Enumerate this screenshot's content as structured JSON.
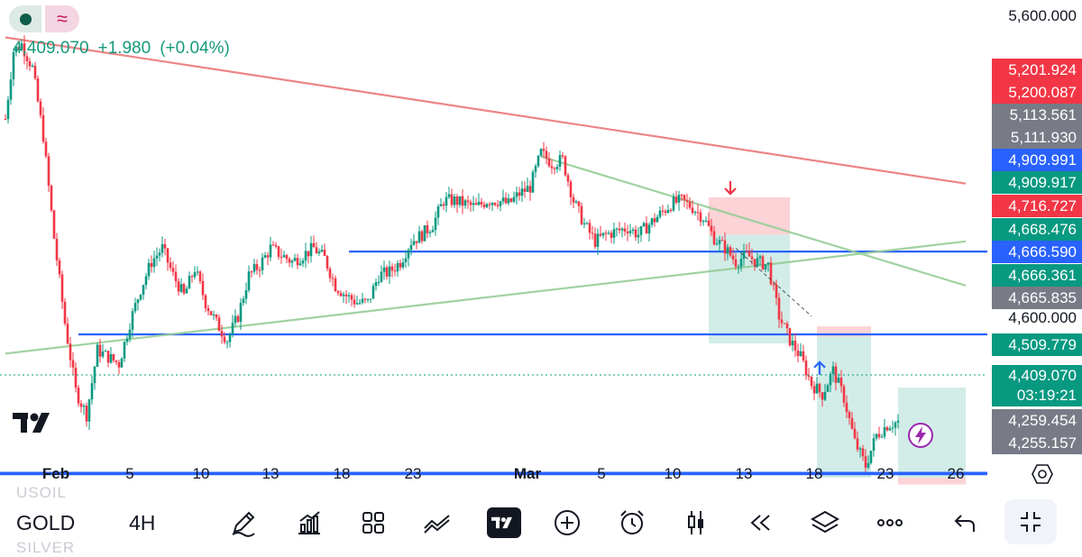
{
  "header": {
    "price": "4,409.070",
    "change": "+1.980",
    "change_pct": "(+0.04%)",
    "colors": {
      "up": "#089981",
      "down": "#f23645",
      "blue_line": "#2962ff"
    }
  },
  "price_axis": {
    "plain_labels": [
      "5,600.000",
      "4,600.000"
    ],
    "tags": [
      {
        "text": "5,201.924",
        "color": "#f23645"
      },
      {
        "text": "5,200.087",
        "color": "#f23645"
      },
      {
        "text": "5,113.561",
        "color": "#787b86"
      },
      {
        "text": "5,111.930",
        "color": "#787b86"
      },
      {
        "text": "4,909.991",
        "color": "#2962ff"
      },
      {
        "text": "4,909.917",
        "color": "#089981"
      },
      {
        "text": "4,716.727",
        "color": "#f23645"
      },
      {
        "text": "4,668.476",
        "color": "#089981"
      },
      {
        "text": "4,666.590",
        "color": "#2962ff"
      },
      {
        "text": "4,666.361",
        "color": "#089981"
      },
      {
        "text": "4,665.835",
        "color": "#787b86"
      },
      {
        "text": "4,509.779",
        "color": "#089981"
      },
      {
        "text": "4,259.454",
        "color": "#787b86"
      },
      {
        "text": "4,255.157",
        "color": "#787b86"
      }
    ],
    "current_tag": {
      "price": "4,409.070",
      "countdown": "03:19:21",
      "color": "#089981"
    }
  },
  "time_axis": {
    "labels": [
      "Feb",
      "5",
      "10",
      "13",
      "18",
      "23",
      "Mar",
      "5",
      "10",
      "13",
      "18",
      "23",
      "26"
    ]
  },
  "toolbar": {
    "symbol": "GOLD",
    "ghost_above": "USOIL",
    "ghost_below": "SILVER",
    "timeframe": "4H"
  },
  "chart_data": {
    "type": "candlestick",
    "symbol": "GOLD",
    "timeframe": "4H",
    "ylim": [
      4200,
      5650
    ],
    "x_ticks": [
      "Feb",
      "5",
      "10",
      "13",
      "18",
      "23",
      "Mar",
      "5",
      "10",
      "13",
      "18",
      "23",
      "26"
    ],
    "close_path": [
      {
        "t": 0.0,
        "p": 5300
      },
      {
        "t": 0.3,
        "p": 5500
      },
      {
        "t": 0.6,
        "p": 5520
      },
      {
        "t": 1.0,
        "p": 5450
      },
      {
        "t": 1.4,
        "p": 5250
      },
      {
        "t": 1.8,
        "p": 4950
      },
      {
        "t": 2.2,
        "p": 4700
      },
      {
        "t": 2.6,
        "p": 4500
      },
      {
        "t": 3.0,
        "p": 4430
      },
      {
        "t": 3.4,
        "p": 4620
      },
      {
        "t": 3.8,
        "p": 4600
      },
      {
        "t": 4.2,
        "p": 4580
      },
      {
        "t": 4.6,
        "p": 4700
      },
      {
        "t": 5.0,
        "p": 4800
      },
      {
        "t": 5.4,
        "p": 4880
      },
      {
        "t": 5.8,
        "p": 4920
      },
      {
        "t": 6.2,
        "p": 4840
      },
      {
        "t": 6.6,
        "p": 4780
      },
      {
        "t": 7.0,
        "p": 4860
      },
      {
        "t": 7.4,
        "p": 4760
      },
      {
        "t": 7.8,
        "p": 4700
      },
      {
        "t": 8.2,
        "p": 4650
      },
      {
        "t": 8.6,
        "p": 4720
      },
      {
        "t": 9.0,
        "p": 4840
      },
      {
        "t": 9.4,
        "p": 4870
      },
      {
        "t": 9.8,
        "p": 4920
      },
      {
        "t": 10.2,
        "p": 4900
      },
      {
        "t": 10.6,
        "p": 4880
      },
      {
        "t": 11.0,
        "p": 4900
      },
      {
        "t": 11.4,
        "p": 4920
      },
      {
        "t": 11.8,
        "p": 4890
      },
      {
        "t": 12.2,
        "p": 4810
      },
      {
        "t": 12.6,
        "p": 4780
      },
      {
        "t": 13.0,
        "p": 4760
      },
      {
        "t": 13.4,
        "p": 4760
      },
      {
        "t": 13.8,
        "p": 4840
      },
      {
        "t": 14.2,
        "p": 4850
      },
      {
        "t": 14.6,
        "p": 4880
      },
      {
        "t": 15.0,
        "p": 4940
      },
      {
        "t": 15.4,
        "p": 4960
      },
      {
        "t": 15.8,
        "p": 4990
      },
      {
        "t": 16.2,
        "p": 5060
      },
      {
        "t": 16.6,
        "p": 5060
      },
      {
        "t": 17.0,
        "p": 5050
      },
      {
        "t": 17.4,
        "p": 5040
      },
      {
        "t": 17.8,
        "p": 5060
      },
      {
        "t": 18.2,
        "p": 5060
      },
      {
        "t": 18.6,
        "p": 5050
      },
      {
        "t": 19.0,
        "p": 5080
      },
      {
        "t": 19.4,
        "p": 5100
      },
      {
        "t": 19.8,
        "p": 5200
      },
      {
        "t": 20.2,
        "p": 5170
      },
      {
        "t": 20.6,
        "p": 5180
      },
      {
        "t": 21.0,
        "p": 5060
      },
      {
        "t": 21.4,
        "p": 4990
      },
      {
        "t": 21.8,
        "p": 4940
      },
      {
        "t": 22.2,
        "p": 4960
      },
      {
        "t": 22.6,
        "p": 4970
      },
      {
        "t": 23.0,
        "p": 4980
      },
      {
        "t": 23.4,
        "p": 4960
      },
      {
        "t": 23.8,
        "p": 4990
      },
      {
        "t": 24.2,
        "p": 5020
      },
      {
        "t": 24.6,
        "p": 5050
      },
      {
        "t": 25.0,
        "p": 5060
      },
      {
        "t": 25.4,
        "p": 5040
      },
      {
        "t": 25.8,
        "p": 5010
      },
      {
        "t": 26.2,
        "p": 4950
      },
      {
        "t": 26.6,
        "p": 4920
      },
      {
        "t": 27.0,
        "p": 4880
      },
      {
        "t": 27.4,
        "p": 4900
      },
      {
        "t": 27.8,
        "p": 4880
      },
      {
        "t": 28.2,
        "p": 4870
      },
      {
        "t": 28.6,
        "p": 4720
      },
      {
        "t": 29.0,
        "p": 4650
      },
      {
        "t": 29.4,
        "p": 4600
      },
      {
        "t": 29.8,
        "p": 4520
      },
      {
        "t": 30.2,
        "p": 4490
      },
      {
        "t": 30.6,
        "p": 4560
      },
      {
        "t": 31.0,
        "p": 4480
      },
      {
        "t": 31.4,
        "p": 4350
      },
      {
        "t": 31.8,
        "p": 4280
      },
      {
        "t": 32.2,
        "p": 4370
      },
      {
        "t": 32.6,
        "p": 4400
      },
      {
        "t": 33.0,
        "p": 4409
      }
    ],
    "horizontal_lines": [
      4909.991,
      4666.59,
      4259.454,
      4255.157
    ],
    "trend_lines": [
      {
        "color": "red",
        "from": {
          "t": 0.0,
          "p": 5540
        },
        "to": {
          "t": 35.5,
          "p": 5110
        }
      },
      {
        "color": "green",
        "from": {
          "t": 0.0,
          "p": 4610
        },
        "to": {
          "t": 35.5,
          "p": 4940
        }
      },
      {
        "color": "green",
        "from": {
          "t": 19.8,
          "p": 5190
        },
        "to": {
          "t": 35.5,
          "p": 4810
        }
      }
    ],
    "positions": [
      {
        "side": "short",
        "start": 26.0,
        "end": 29.0,
        "entry": 4960,
        "stop": 5070,
        "target": 4640
      },
      {
        "side": "short",
        "start": 30.0,
        "end": 32.0,
        "entry": 4660,
        "stop": 4690,
        "target": 4245
      },
      {
        "side": "long",
        "start": 33.0,
        "end": 35.5,
        "entry": 4245,
        "stop": 4225,
        "target": 4510
      }
    ]
  }
}
